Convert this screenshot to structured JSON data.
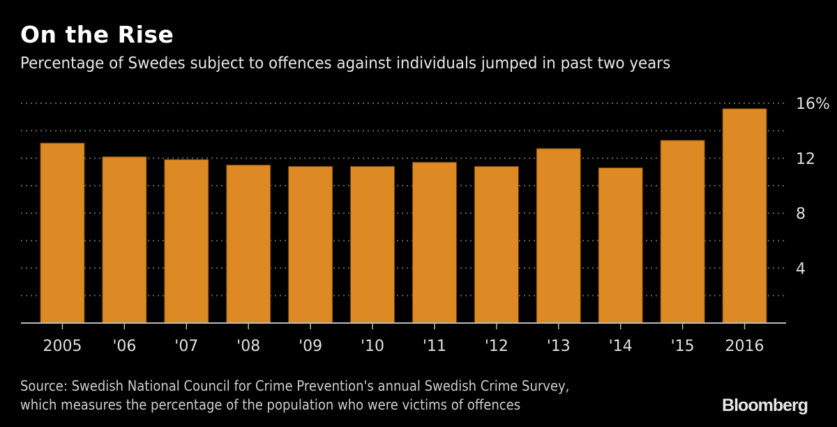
{
  "chart_data": {
    "type": "bar",
    "title": "On the Rise",
    "subtitle": "Percentage of Swedes subject to offences against individuals jumped in past two years",
    "categories": [
      "2005",
      "'06",
      "'07",
      "'08",
      "'09",
      "'10",
      "'11",
      "'12",
      "'13",
      "'14",
      "'15",
      "2016"
    ],
    "values": [
      13.1,
      12.1,
      11.9,
      11.5,
      11.4,
      11.4,
      11.7,
      11.4,
      12.7,
      11.3,
      13.3,
      15.6
    ],
    "ylim": [
      0,
      16
    ],
    "yticks": [
      4,
      8,
      12,
      16
    ],
    "ytick_labels": [
      "4",
      "8",
      "12",
      "16%"
    ],
    "minor_gridlines": [
      2,
      6,
      10,
      14
    ],
    "grid": true,
    "y_axis_side": "right",
    "xlabel": "",
    "ylabel": "",
    "bar_color": "#dd8a24",
    "grid_color": "#666666"
  },
  "footer": {
    "source_line1": "Source: Swedish National Council for Crime Prevention's annual Swedish Crime Survey,",
    "source_line2": "which measures the percentage of the population who were victims of offences",
    "brand": "Bloomberg"
  }
}
